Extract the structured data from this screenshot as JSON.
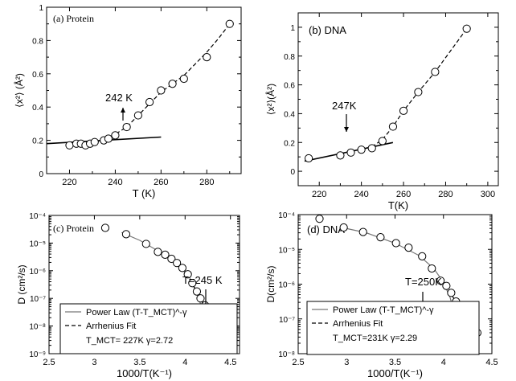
{
  "chart_data": [
    {
      "type": "scatter",
      "panel_label": "(a) Protein",
      "xlabel": "T (K)",
      "ylabel": "⟨x²⟩ (Å²)",
      "xlim": [
        210,
        295
      ],
      "ylim": [
        0,
        1
      ],
      "xticks": [
        220,
        240,
        260,
        280
      ],
      "yticks": [
        0,
        0.2,
        0.4,
        0.6,
        0.8,
        1
      ],
      "ytick_labels": [
        "0",
        "0.2",
        "0.4",
        "0.6",
        "0.8",
        "1"
      ],
      "annotation": "242 K",
      "series": [
        {
          "marker": "open-circle",
          "x": [
            220,
            223,
            225,
            227,
            229,
            231,
            235,
            237,
            240,
            245,
            250,
            255,
            260,
            265,
            270,
            280,
            290
          ],
          "y": [
            0.17,
            0.18,
            0.18,
            0.17,
            0.18,
            0.19,
            0.2,
            0.21,
            0.23,
            0.28,
            0.35,
            0.43,
            0.5,
            0.54,
            0.57,
            0.7,
            0.9
          ]
        },
        {
          "style": "solid",
          "x": [
            210,
            260
          ],
          "y": [
            0.18,
            0.22
          ]
        },
        {
          "style": "dashed",
          "x": [
            238,
            245,
            250,
            255,
            260,
            265,
            270,
            275,
            280,
            285,
            290
          ],
          "y": [
            0.22,
            0.28,
            0.35,
            0.42,
            0.49,
            0.54,
            0.59,
            0.66,
            0.73,
            0.81,
            0.9
          ]
        }
      ]
    },
    {
      "type": "scatter",
      "panel_label": "(b) DNA",
      "xlabel": "T(K)",
      "ylabel": "⟨x²⟩(Å²)",
      "xlim": [
        210,
        305
      ],
      "ylim": [
        -0.1,
        1.1
      ],
      "xticks": [
        220,
        240,
        260,
        280,
        300
      ],
      "yticks": [
        0,
        0.2,
        0.4,
        0.6,
        0.8,
        1
      ],
      "ytick_labels": [
        "0",
        "0.2",
        "0.4",
        "0.6",
        "0.8",
        "1"
      ],
      "annotation": "247K",
      "series": [
        {
          "marker": "open-circle",
          "x": [
            215,
            230,
            235,
            240,
            245,
            250,
            255,
            260,
            267,
            275,
            290
          ],
          "y": [
            0.09,
            0.11,
            0.13,
            0.15,
            0.16,
            0.21,
            0.31,
            0.42,
            0.55,
            0.69,
            0.99
          ]
        },
        {
          "style": "solid",
          "x": [
            213,
            255
          ],
          "y": [
            0.07,
            0.2
          ]
        },
        {
          "style": "dashed",
          "x": [
            245,
            250,
            255,
            260,
            267,
            275,
            290
          ],
          "y": [
            0.17,
            0.22,
            0.31,
            0.42,
            0.55,
            0.69,
            0.99
          ]
        }
      ]
    },
    {
      "type": "scatter",
      "y_scale": "log",
      "panel_label": "(c) Protein",
      "xlabel": "1000/T(K⁻¹)",
      "ylabel": "D (cm²/s)",
      "xlim": [
        2.5,
        4.6
      ],
      "ylim": [
        -9,
        -4
      ],
      "xticks": [
        2.5,
        3,
        3.5,
        4,
        4.5
      ],
      "xtick_labels": [
        "2.5",
        "3",
        "3.5",
        "4",
        "4.5"
      ],
      "yticks": [
        -9,
        -8,
        -7,
        -6,
        -5,
        -4
      ],
      "ytick_labels": [
        "10⁻⁹",
        "10⁻⁸",
        "10⁻⁷",
        "10⁻⁶",
        "10⁻⁵",
        "10⁻⁴"
      ],
      "annotation": "T=245 K",
      "legend": [
        "Power Law (T-T_MCT)^-γ",
        "Arrhenius Fit",
        "T_MCT= 227K  γ=2.72"
      ],
      "series": [
        {
          "marker": "open-circle",
          "x": [
            3.12,
            3.35,
            3.57,
            3.7,
            3.78,
            3.85,
            3.91,
            3.97,
            4.03,
            4.08,
            4.13,
            4.17,
            4.22,
            4.26,
            4.3,
            4.35
          ],
          "y": [
            -4.45,
            -4.68,
            -5.03,
            -5.32,
            -5.42,
            -5.57,
            -5.72,
            -5.9,
            -6.13,
            -6.45,
            -6.75,
            -7.0,
            -7.25,
            -7.55,
            -7.85,
            -8.2
          ]
        },
        {
          "style": "solid",
          "x": [
            3.3,
            3.5,
            3.7,
            3.85,
            3.95,
            4.05,
            4.12,
            4.18,
            4.22,
            4.25
          ],
          "y": [
            -4.62,
            -4.9,
            -5.28,
            -5.58,
            -5.85,
            -6.25,
            -6.7,
            -7.3,
            -7.9,
            -8.5
          ]
        },
        {
          "style": "dashed",
          "x": [
            4.05,
            4.15,
            4.25,
            4.35,
            4.4
          ],
          "y": [
            -6.3,
            -6.9,
            -7.5,
            -8.15,
            -8.45
          ]
        }
      ]
    },
    {
      "type": "scatter",
      "y_scale": "log",
      "panel_label": "(d) DNA",
      "xlabel": "1000/T(K⁻¹)",
      "ylabel": "D(cm²/s)",
      "xlim": [
        2.5,
        4.5
      ],
      "ylim": [
        -8,
        -4
      ],
      "xticks": [
        2.5,
        3,
        3.5,
        4,
        4.5
      ],
      "xtick_labels": [
        "2.5",
        "3",
        "3.5",
        "4",
        "4.5"
      ],
      "yticks": [
        -8,
        -7,
        -6,
        -5,
        -4
      ],
      "ytick_labels": [
        "10⁻⁸",
        "10⁻⁷",
        "10⁻⁶",
        "10⁻⁵",
        "10⁻⁴"
      ],
      "annotation": "T=250K",
      "legend": [
        "Power Law (T-T_MCT)^-γ",
        "Arrhenius Fit",
        "T_MCT=231K γ=2.29"
      ],
      "series": [
        {
          "marker": "open-circle",
          "x": [
            2.72,
            2.97,
            3.17,
            3.35,
            3.51,
            3.64,
            3.78,
            3.88,
            3.97,
            4.03,
            4.08,
            4.13,
            4.18,
            4.23,
            4.29,
            4.35
          ],
          "y": [
            -4.12,
            -4.37,
            -4.5,
            -4.65,
            -4.82,
            -4.95,
            -5.2,
            -5.55,
            -5.9,
            -6.05,
            -6.25,
            -6.5,
            -6.7,
            -6.9,
            -7.15,
            -7.4
          ]
        },
        {
          "style": "solid",
          "x": [
            2.95,
            3.2,
            3.5,
            3.75,
            3.9,
            4.0,
            4.07,
            4.12,
            4.16,
            4.18
          ],
          "y": [
            -4.37,
            -4.52,
            -4.82,
            -5.18,
            -5.55,
            -5.95,
            -6.4,
            -6.9,
            -7.5,
            -8.0
          ]
        },
        {
          "style": "dashed",
          "x": [
            3.97,
            4.1,
            4.2,
            4.3,
            4.37
          ],
          "y": [
            -5.92,
            -6.38,
            -6.78,
            -7.18,
            -7.45
          ]
        }
      ]
    }
  ]
}
